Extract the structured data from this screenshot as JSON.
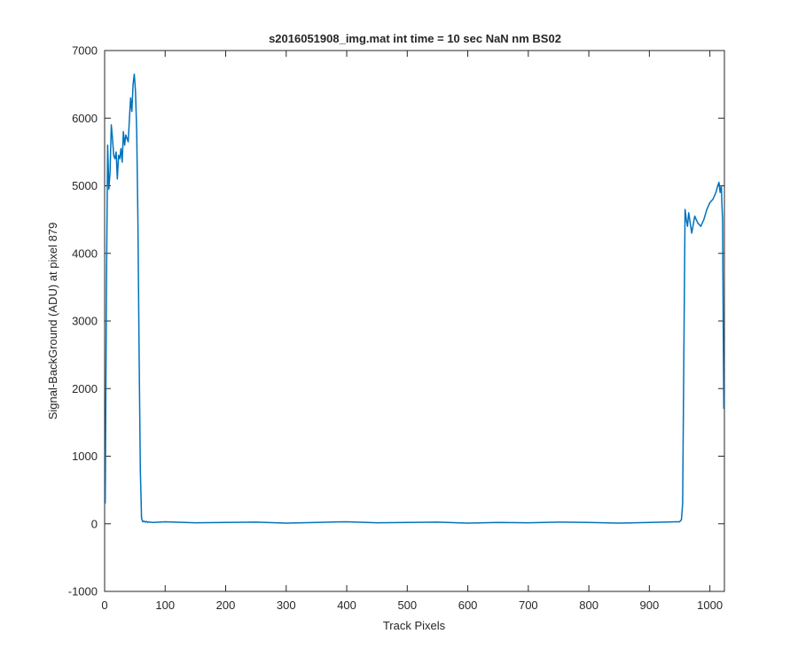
{
  "chart_data": {
    "type": "line",
    "title": "s2016051908_img.mat int time = 10 sec  NaN nm BS02",
    "xlabel": "Track Pixels",
    "ylabel": "Signal-BackGround (ADU) at pixel 879",
    "xlim": [
      0,
      1024
    ],
    "ylim": [
      -1000,
      7000
    ],
    "xticks": [
      0,
      100,
      200,
      300,
      400,
      500,
      600,
      700,
      800,
      900,
      1000
    ],
    "yticks": [
      -1000,
      0,
      1000,
      2000,
      3000,
      4000,
      5000,
      6000,
      7000
    ],
    "grid": false,
    "line_color": "#0072BD",
    "series": [
      {
        "x": [
          1,
          3,
          5,
          7,
          9,
          11,
          13,
          15,
          17,
          19,
          21,
          23,
          25,
          27,
          29,
          31,
          33,
          35,
          37,
          39,
          41,
          43,
          45,
          47,
          49,
          51,
          53,
          55,
          57,
          59,
          61,
          63,
          65,
          67,
          69,
          71,
          73,
          75,
          80,
          100,
          150,
          200,
          250,
          300,
          350,
          400,
          450,
          500,
          550,
          600,
          650,
          700,
          750,
          800,
          850,
          900,
          950,
          953,
          955,
          957,
          959,
          961,
          963,
          965,
          970,
          975,
          980,
          985,
          990,
          995,
          1000,
          1005,
          1010,
          1013,
          1015,
          1017,
          1019,
          1020,
          1021,
          1022,
          1023
        ],
        "y": [
          300,
          3500,
          5600,
          4950,
          5200,
          5900,
          5700,
          5450,
          5400,
          5500,
          5100,
          5450,
          5400,
          5550,
          5350,
          5800,
          5600,
          5750,
          5700,
          5650,
          6000,
          6300,
          6100,
          6500,
          6650,
          6400,
          5800,
          4500,
          2500,
          800,
          80,
          30,
          40,
          25,
          35,
          20,
          30,
          25,
          20,
          30,
          15,
          20,
          25,
          10,
          20,
          30,
          15,
          20,
          25,
          10,
          20,
          15,
          25,
          20,
          10,
          20,
          30,
          60,
          300,
          2500,
          4650,
          4500,
          4400,
          4600,
          4300,
          4550,
          4450,
          4400,
          4500,
          4650,
          4750,
          4800,
          4900,
          5000,
          5050,
          4900,
          5000,
          4700,
          4500,
          3000,
          1700
        ]
      }
    ]
  }
}
